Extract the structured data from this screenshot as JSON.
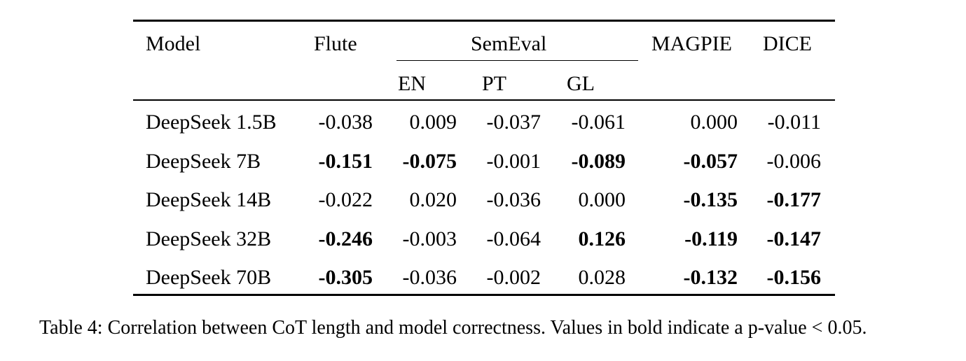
{
  "table": {
    "headers": {
      "model": "Model",
      "flute": "Flute",
      "semeval": "SemEval",
      "magpie": "MAGPIE",
      "dice": "DICE"
    },
    "subheaders": {
      "en": "EN",
      "pt": "PT",
      "gl": "GL"
    },
    "rows": [
      {
        "model": "DeepSeek 1.5B",
        "cells": [
          {
            "value": "-0.038",
            "bold": false
          },
          {
            "value": "0.009",
            "bold": false
          },
          {
            "value": "-0.037",
            "bold": false
          },
          {
            "value": "-0.061",
            "bold": false
          },
          {
            "value": "0.000",
            "bold": false
          },
          {
            "value": "-0.011",
            "bold": false
          }
        ]
      },
      {
        "model": "DeepSeek 7B",
        "cells": [
          {
            "value": "-0.151",
            "bold": true
          },
          {
            "value": "-0.075",
            "bold": true
          },
          {
            "value": "-0.001",
            "bold": false
          },
          {
            "value": "-0.089",
            "bold": true
          },
          {
            "value": "-0.057",
            "bold": true
          },
          {
            "value": "-0.006",
            "bold": false
          }
        ]
      },
      {
        "model": "DeepSeek 14B",
        "cells": [
          {
            "value": "-0.022",
            "bold": false
          },
          {
            "value": "0.020",
            "bold": false
          },
          {
            "value": "-0.036",
            "bold": false
          },
          {
            "value": "0.000",
            "bold": false
          },
          {
            "value": "-0.135",
            "bold": true
          },
          {
            "value": "-0.177",
            "bold": true
          }
        ]
      },
      {
        "model": "DeepSeek 32B",
        "cells": [
          {
            "value": "-0.246",
            "bold": true
          },
          {
            "value": "-0.003",
            "bold": false
          },
          {
            "value": "-0.064",
            "bold": false
          },
          {
            "value": "0.126",
            "bold": true
          },
          {
            "value": "-0.119",
            "bold": true
          },
          {
            "value": "-0.147",
            "bold": true
          }
        ]
      },
      {
        "model": "DeepSeek 70B",
        "cells": [
          {
            "value": "-0.305",
            "bold": true
          },
          {
            "value": "-0.036",
            "bold": false
          },
          {
            "value": "-0.002",
            "bold": false
          },
          {
            "value": "0.028",
            "bold": false
          },
          {
            "value": "-0.132",
            "bold": true
          },
          {
            "value": "-0.156",
            "bold": true
          }
        ]
      }
    ]
  },
  "caption": "Table 4: Correlation between CoT length and model correctness. Values in bold indicate a p-value < 0.05."
}
